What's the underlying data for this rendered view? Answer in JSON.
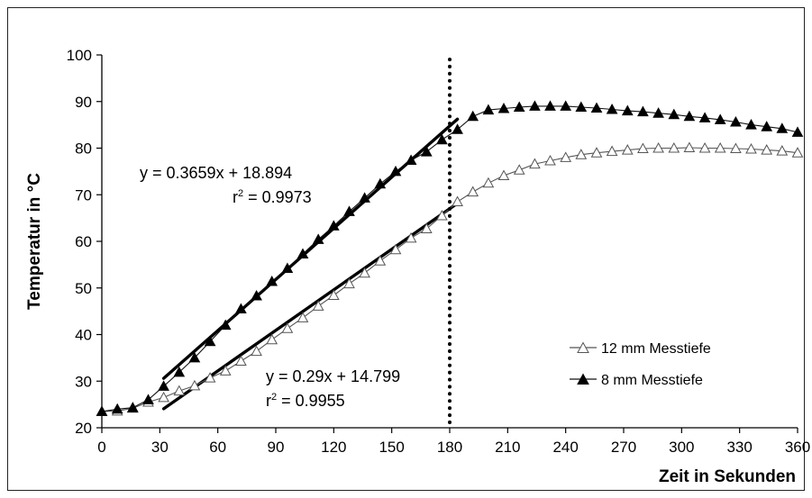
{
  "chart_data": {
    "type": "line",
    "xlabel": "Zeit in Sekunden",
    "ylabel": "Temperatur in °C",
    "xlim": [
      0,
      360
    ],
    "ylim": [
      20,
      100
    ],
    "xticks": [
      0,
      30,
      60,
      90,
      120,
      150,
      180,
      210,
      240,
      270,
      300,
      330,
      360
    ],
    "yticks": [
      20,
      30,
      40,
      50,
      60,
      70,
      80,
      90,
      100
    ],
    "grid": false,
    "legend_position": "bottom-right",
    "vertical_marker_x": 180,
    "series": [
      {
        "name": "12 mm Messtiefe",
        "marker": "open-triangle",
        "color": "#555555",
        "x": [
          0,
          8,
          16,
          24,
          32,
          40,
          48,
          56,
          64,
          72,
          80,
          88,
          96,
          104,
          112,
          120,
          128,
          136,
          144,
          152,
          160,
          168,
          176,
          184,
          192,
          200,
          208,
          216,
          224,
          232,
          240,
          248,
          256,
          264,
          272,
          280,
          288,
          296,
          304,
          312,
          320,
          328,
          336,
          344,
          352,
          360
        ],
        "y": [
          23.5,
          23.6,
          24.2,
          25.5,
          26.5,
          27.9,
          29.0,
          30.7,
          32.2,
          34.3,
          36.4,
          38.9,
          41.3,
          43.6,
          46.1,
          48.4,
          50.9,
          53.2,
          55.8,
          58.2,
          60.7,
          62.7,
          65.5,
          68.5,
          70.6,
          72.5,
          74.1,
          75.3,
          76.6,
          77.3,
          78.0,
          78.6,
          79.0,
          79.3,
          79.6,
          79.9,
          80.0,
          80.0,
          80.1,
          80.0,
          80.0,
          79.9,
          79.8,
          79.6,
          79.4,
          79.0
        ]
      },
      {
        "name": "8 mm Messtiefe",
        "marker": "filled-triangle",
        "color": "#111111",
        "x": [
          0,
          8,
          16,
          24,
          32,
          40,
          48,
          56,
          64,
          72,
          80,
          88,
          96,
          104,
          112,
          120,
          128,
          136,
          144,
          152,
          160,
          168,
          176,
          184,
          192,
          200,
          208,
          216,
          224,
          232,
          240,
          248,
          256,
          264,
          272,
          280,
          288,
          296,
          304,
          312,
          320,
          328,
          336,
          344,
          352,
          360
        ],
        "y": [
          23.5,
          24.0,
          24.3,
          26.0,
          28.9,
          31.9,
          35.0,
          38.5,
          42.0,
          45.5,
          48.3,
          51.4,
          54.2,
          57.3,
          60.4,
          63.3,
          66.4,
          69.3,
          72.3,
          75.0,
          77.4,
          79.2,
          81.8,
          84.0,
          86.8,
          88.2,
          88.5,
          88.8,
          89.0,
          89.0,
          89.0,
          88.8,
          88.6,
          88.3,
          88.0,
          87.8,
          87.5,
          87.2,
          86.8,
          86.5,
          86.1,
          85.6,
          85.0,
          84.6,
          84.2,
          83.4
        ]
      }
    ],
    "trendlines": [
      {
        "series": "8 mm Messtiefe",
        "equation": "y = 0.3659x + 18.894",
        "r2_prefix": "r",
        "r2_exp": "2",
        "r2_value": " = 0.9973",
        "slope": 0.3659,
        "intercept": 18.894,
        "x_range": [
          32,
          184
        ]
      },
      {
        "series": "12 mm Messtiefe",
        "equation": "y = 0.29x + 14.799",
        "r2_prefix": "r",
        "r2_exp": "2",
        "r2_value": " = 0.9955",
        "slope": 0.29,
        "intercept": 14.799,
        "x_range": [
          32,
          184
        ]
      }
    ]
  }
}
